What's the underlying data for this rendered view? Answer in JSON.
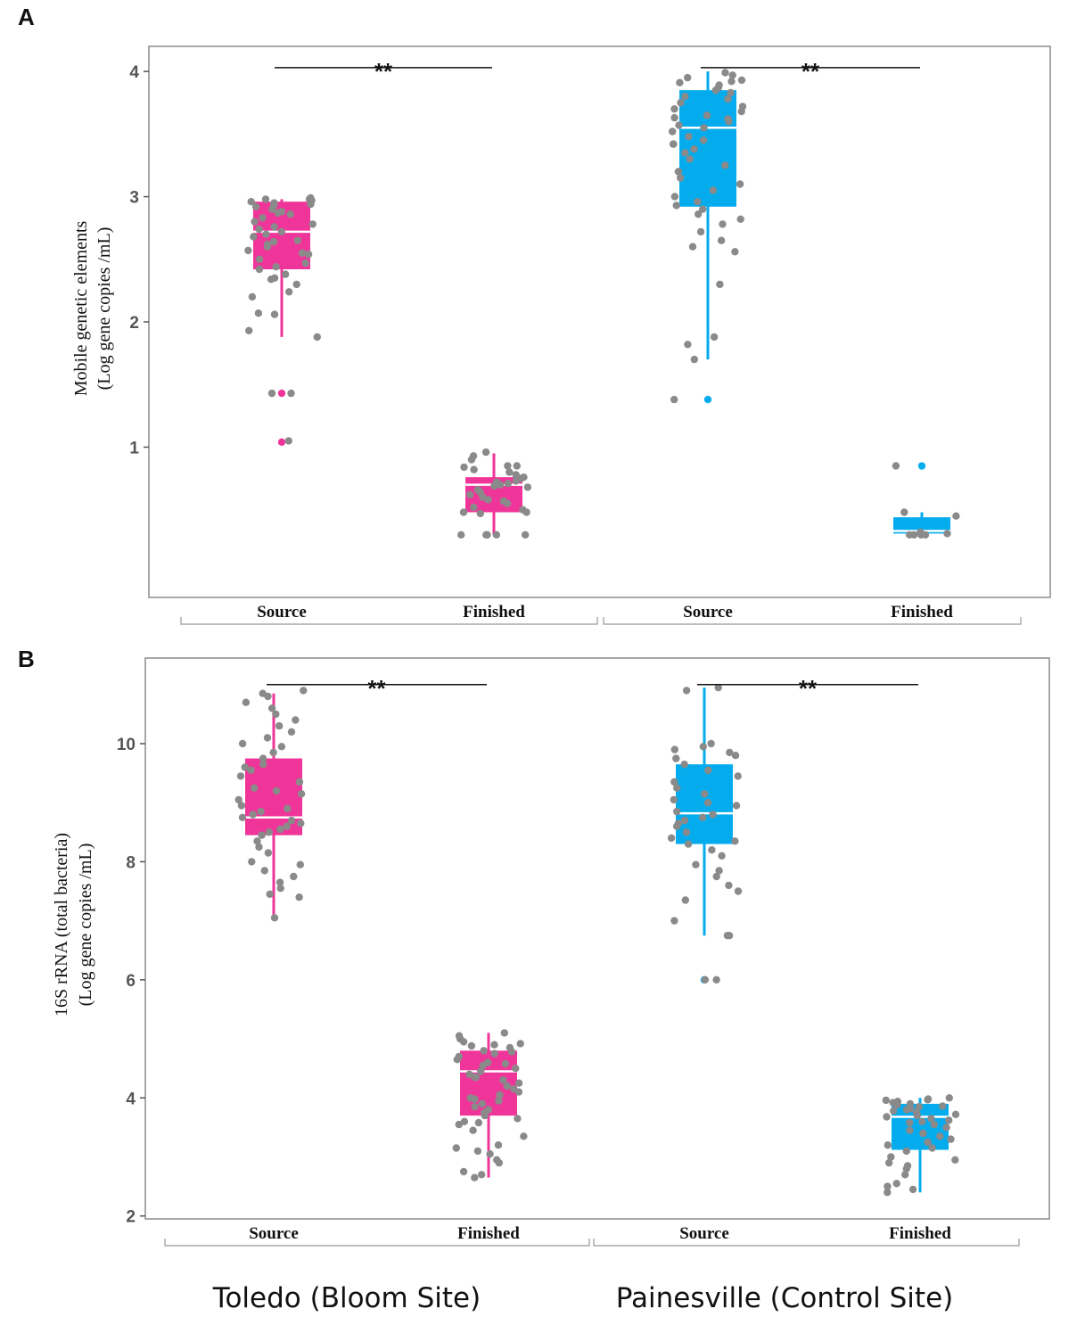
{
  "colors": {
    "toledo": "#f0359a",
    "painesville": "#04acee",
    "points": "#8a8a8a",
    "frame": "#8c8c8c",
    "bracket": "#999999",
    "median": "#ffffff"
  },
  "sites": [
    "Toledo (Bloom Site)",
    "Painesville (Control Site)"
  ],
  "chart_data": [
    {
      "type": "box",
      "panel_label": "A",
      "ylabel_line1": "Mobile genetic elements",
      "ylabel_line2": "(Log gene copies /mL)",
      "ylim": [
        -0.2,
        4.2
      ],
      "yticks": [
        1,
        2,
        3,
        4
      ],
      "ytick_labels": [
        "1",
        "2",
        "3",
        "4"
      ],
      "significance": [
        {
          "from": 0,
          "to": 1,
          "label": "**",
          "y": 4.03
        },
        {
          "from": 2,
          "to": 3,
          "label": "**",
          "y": 4.03
        }
      ],
      "groups": [
        {
          "label": "Source",
          "site": 0,
          "color_key": "toledo",
          "q1": 2.42,
          "median": 2.72,
          "q3": 2.96,
          "whisker_low": 1.88,
          "whisker_high": 2.98,
          "outliers": [
            1.43,
            1.04
          ],
          "points": [
            2.98,
            2.97,
            2.96,
            2.95,
            2.94,
            2.92,
            2.9,
            2.88,
            2.86,
            2.83,
            2.8,
            2.78,
            2.76,
            2.74,
            2.72,
            2.7,
            2.68,
            2.65,
            2.62,
            2.6,
            2.57,
            2.54,
            2.5,
            2.47,
            2.44,
            2.42,
            2.38,
            2.34,
            2.3,
            2.24,
            2.2,
            2.07,
            2.06,
            1.93,
            1.88,
            1.43,
            1.43,
            1.05,
            2.99,
            2.98,
            2.93,
            2.87,
            2.64,
            2.55,
            2.35
          ]
        },
        {
          "label": "Finished",
          "site": 0,
          "color_key": "toledo",
          "q1": 0.48,
          "median": 0.7,
          "q3": 0.76,
          "whisker_low": 0.3,
          "whisker_high": 0.95,
          "outliers": [],
          "points": [
            0.96,
            0.93,
            0.9,
            0.85,
            0.84,
            0.82,
            0.8,
            0.78,
            0.76,
            0.75,
            0.73,
            0.71,
            0.7,
            0.69,
            0.68,
            0.66,
            0.64,
            0.62,
            0.6,
            0.57,
            0.55,
            0.52,
            0.5,
            0.48,
            0.47,
            0.3,
            0.3,
            0.3,
            0.3,
            0.3,
            0.85,
            0.72,
            0.58,
            0.48
          ]
        },
        {
          "label": "Source",
          "site": 1,
          "color_key": "painesville",
          "q1": 2.92,
          "median": 3.55,
          "q3": 3.85,
          "whisker_low": 1.7,
          "whisker_high": 4.0,
          "outliers": [
            1.38
          ],
          "points": [
            3.99,
            3.97,
            3.95,
            3.93,
            3.91,
            3.89,
            3.87,
            3.85,
            3.83,
            3.8,
            3.78,
            3.75,
            3.72,
            3.7,
            3.68,
            3.65,
            3.62,
            3.6,
            3.57,
            3.55,
            3.52,
            3.48,
            3.45,
            3.42,
            3.38,
            3.35,
            3.3,
            3.25,
            3.2,
            3.15,
            3.1,
            3.05,
            3.0,
            2.96,
            2.93,
            2.9,
            2.86,
            2.82,
            2.78,
            2.72,
            2.65,
            2.6,
            2.56,
            2.3,
            1.88,
            1.82,
            1.7,
            1.38,
            3.92,
            3.63,
            3.42
          ]
        },
        {
          "label": "Finished",
          "site": 1,
          "color_key": "painesville",
          "q1": 0.31,
          "median": 0.33,
          "q3": 0.44,
          "whisker_low": 0.28,
          "whisker_high": 0.48,
          "outliers": [
            0.85
          ],
          "points": [
            0.85,
            0.48,
            0.45,
            0.3,
            0.3,
            0.3,
            0.3,
            0.31,
            0.32
          ]
        }
      ]
    },
    {
      "type": "box",
      "panel_label": "B",
      "ylabel_line1": "16S rRNA (total bacteria)",
      "ylabel_line2": "(Log gene copies /mL)",
      "ylim": [
        1.95,
        11.45
      ],
      "yticks": [
        2,
        4,
        6,
        8,
        10
      ],
      "ytick_labels": [
        "2",
        "4",
        "6",
        "8",
        "10"
      ],
      "significance": [
        {
          "from": 0,
          "to": 1,
          "label": "**",
          "y": 11.0
        },
        {
          "from": 2,
          "to": 3,
          "label": "**",
          "y": 11.0
        }
      ],
      "groups": [
        {
          "label": "Source",
          "site": 0,
          "color_key": "toledo",
          "q1": 8.45,
          "median": 8.75,
          "q3": 9.75,
          "whisker_low": 7.05,
          "whisker_high": 10.85,
          "outliers": [],
          "points": [
            10.9,
            10.85,
            10.8,
            10.7,
            10.6,
            10.5,
            10.4,
            10.3,
            10.2,
            10.1,
            10.0,
            9.85,
            9.75,
            9.65,
            9.55,
            9.45,
            9.35,
            9.25,
            9.15,
            9.05,
            8.95,
            8.85,
            8.8,
            8.75,
            8.7,
            8.65,
            8.6,
            8.55,
            8.5,
            8.45,
            8.35,
            8.25,
            8.15,
            8.0,
            7.95,
            7.85,
            7.75,
            7.65,
            7.55,
            7.45,
            7.4,
            7.05,
            9.95,
            9.6,
            9.2,
            8.9
          ]
        },
        {
          "label": "Finished",
          "site": 0,
          "color_key": "toledo",
          "q1": 3.7,
          "median": 4.45,
          "q3": 4.8,
          "whisker_low": 2.65,
          "whisker_high": 5.1,
          "outliers": [],
          "points": [
            5.1,
            5.05,
            5.0,
            4.95,
            4.9,
            4.88,
            4.85,
            4.8,
            4.75,
            4.7,
            4.65,
            4.6,
            4.55,
            4.5,
            4.45,
            4.4,
            4.35,
            4.3,
            4.25,
            4.2,
            4.15,
            4.1,
            4.05,
            4.0,
            3.95,
            3.9,
            3.85,
            3.8,
            3.75,
            3.7,
            3.65,
            3.6,
            3.55,
            3.45,
            3.35,
            3.2,
            3.15,
            3.1,
            3.05,
            2.95,
            2.9,
            2.75,
            2.7,
            2.65,
            4.92,
            4.78,
            4.58,
            4.35,
            3.98,
            3.58
          ]
        },
        {
          "label": "Source",
          "site": 1,
          "color_key": "painesville",
          "q1": 8.3,
          "median": 8.82,
          "q3": 9.65,
          "whisker_low": 6.75,
          "whisker_high": 10.95,
          "outliers": [
            6.0
          ],
          "points": [
            10.95,
            10.9,
            10.0,
            9.95,
            9.9,
            9.85,
            9.75,
            9.65,
            9.55,
            9.45,
            9.35,
            9.25,
            9.15,
            9.05,
            8.95,
            8.85,
            8.8,
            8.75,
            8.7,
            8.65,
            8.6,
            8.5,
            8.4,
            8.3,
            8.2,
            8.1,
            7.95,
            7.85,
            7.75,
            7.6,
            7.5,
            7.35,
            7.0,
            6.75,
            6.75,
            6.0,
            6.0,
            9.8,
            9.0,
            8.35
          ]
        },
        {
          "label": "Finished",
          "site": 1,
          "color_key": "painesville",
          "q1": 3.12,
          "median": 3.68,
          "q3": 3.9,
          "whisker_low": 2.4,
          "whisker_high": 4.0,
          "outliers": [],
          "points": [
            4.0,
            3.98,
            3.96,
            3.94,
            3.92,
            3.9,
            3.88,
            3.85,
            3.82,
            3.8,
            3.78,
            3.75,
            3.72,
            3.7,
            3.68,
            3.65,
            3.62,
            3.6,
            3.55,
            3.5,
            3.45,
            3.4,
            3.35,
            3.3,
            3.25,
            3.2,
            3.15,
            3.1,
            3.0,
            2.95,
            2.9,
            2.85,
            2.8,
            2.7,
            2.55,
            2.5,
            2.45,
            2.4,
            3.97,
            3.86,
            3.58
          ]
        }
      ]
    }
  ]
}
